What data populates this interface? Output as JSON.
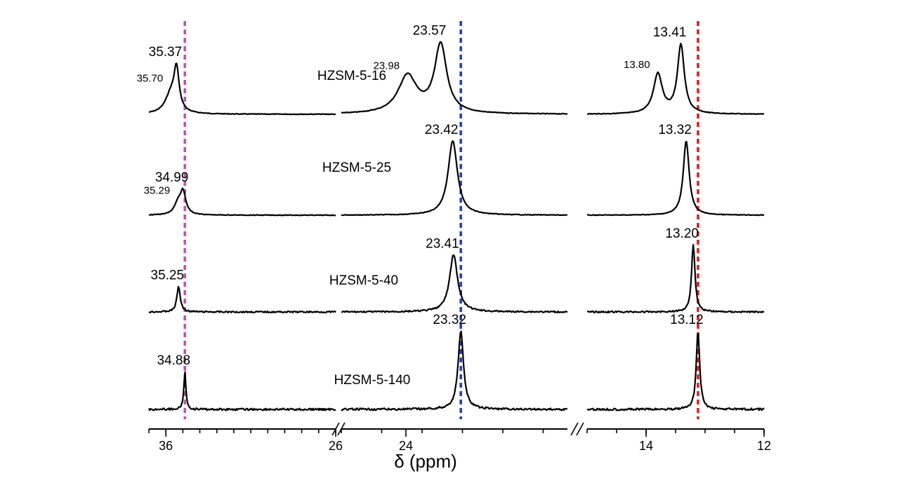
{
  "chart_data": {
    "type": "line",
    "xlabel": "δ (ppm)",
    "x_axis_reversed": true,
    "broken_axis": true,
    "segments": [
      {
        "range": [
          37,
          26
        ],
        "ticks": [
          36,
          26
        ],
        "tick_labels": [
          "36",
          "26"
        ]
      },
      {
        "range": [
          24.8,
          22.0
        ],
        "ticks": [
          24
        ],
        "tick_labels": [
          "24"
        ]
      },
      {
        "range": [
          15.0,
          12.0
        ],
        "ticks": [
          14,
          12
        ],
        "tick_labels": [
          "14",
          "12"
        ]
      }
    ],
    "reference_lines": [
      {
        "x": 34.88,
        "color": "#c050b8"
      },
      {
        "x": 23.32,
        "color": "#2040c8"
      },
      {
        "x": 13.12,
        "color": "#e02020"
      }
    ],
    "series": [
      {
        "name": "HZSM-5-16",
        "noise": 0.3,
        "peaks": [
          {
            "x": 35.7,
            "label": "35.70",
            "height": 0.28,
            "width": 0.4,
            "minor": true
          },
          {
            "x": 35.37,
            "label": "35.37",
            "height": 0.58,
            "width": 0.18
          },
          {
            "x": 23.98,
            "label": "23.98",
            "height": 0.55,
            "width": 0.14,
            "minor": true
          },
          {
            "x": 23.57,
            "label": "23.57",
            "height": 1.0,
            "width": 0.09
          },
          {
            "x": 13.8,
            "label": "13.80",
            "height": 0.58,
            "width": 0.09,
            "minor": true
          },
          {
            "x": 13.41,
            "label": "13.41",
            "height": 1.0,
            "width": 0.07
          }
        ]
      },
      {
        "name": "HZSM-5-25",
        "noise": 0.3,
        "peaks": [
          {
            "x": 35.29,
            "label": "35.29",
            "height": 0.14,
            "width": 0.25,
            "minor": true
          },
          {
            "x": 34.99,
            "label": "34.99",
            "height": 0.3,
            "width": 0.2
          },
          {
            "x": 23.42,
            "label": "23.42",
            "height": 1.0,
            "width": 0.07
          },
          {
            "x": 13.32,
            "label": "13.32",
            "height": 1.0,
            "width": 0.06
          }
        ]
      },
      {
        "name": "HZSM-5-40",
        "noise": 0.7,
        "peaks": [
          {
            "x": 35.25,
            "label": "35.25",
            "height": 0.38,
            "width": 0.12
          },
          {
            "x": 23.41,
            "label": "23.41",
            "height": 0.85,
            "width": 0.06
          },
          {
            "x": 13.2,
            "label": "13.20",
            "height": 1.0,
            "width": 0.035
          }
        ]
      },
      {
        "name": "HZSM-5-140",
        "noise": 1.0,
        "peaks": [
          {
            "x": 34.88,
            "label": "34.88",
            "height": 0.48,
            "width": 0.07
          },
          {
            "x": 23.32,
            "label": "23.32",
            "height": 1.0,
            "width": 0.04
          },
          {
            "x": 13.12,
            "label": "13.12",
            "height": 1.0,
            "width": 0.035
          }
        ]
      }
    ]
  }
}
